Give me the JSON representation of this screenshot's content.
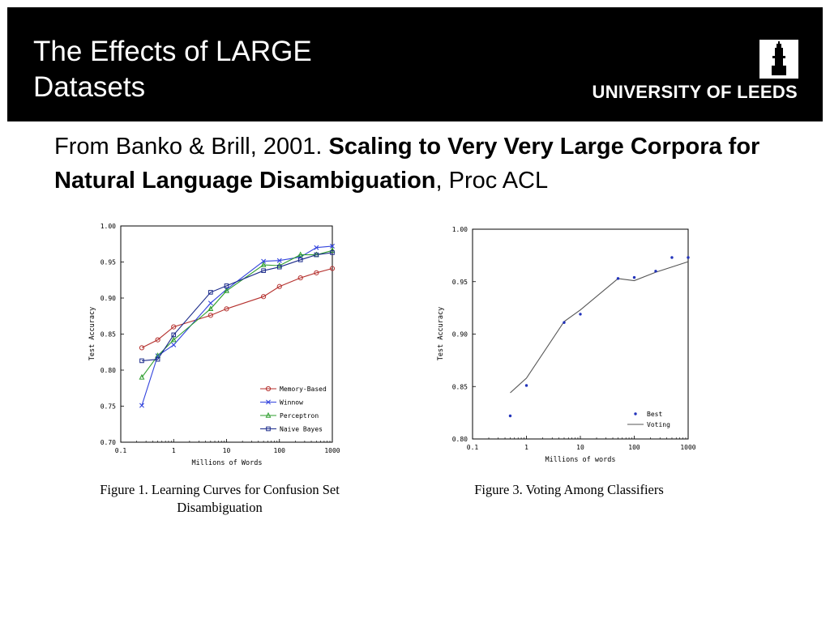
{
  "header": {
    "title": "The Effects of LARGE Datasets",
    "university": "UNIVERSITY OF LEEDS",
    "accent_bg": "#000000",
    "logo_icon": "leeds-tower-icon"
  },
  "citation": {
    "prefix": "From Banko &  Brill, 2001. ",
    "title": "Scaling to Very Very Large Corpora for Natural Language Disambiguation",
    "suffix": ", Proc ACL"
  },
  "figures": {
    "fig1_caption_line1": "Figure 1. Learning Curves for Confusion Set",
    "fig1_caption_line2": "Disambiguation",
    "fig3_caption": "Figure 3. Voting Among Classifiers"
  },
  "chart_data": [
    {
      "type": "line",
      "xlabel": "Millions of Words",
      "ylabel": "Test Accuracy",
      "x_scale": "log",
      "xlim": [
        0.1,
        1000
      ],
      "ylim": [
        0.7,
        1.0
      ],
      "x_ticks": [
        "0.1",
        "1",
        "10",
        "100",
        "1000"
      ],
      "y_ticks": [
        "0.70",
        "0.75",
        "0.80",
        "0.85",
        "0.90",
        "0.95",
        "1.00"
      ],
      "legend": "bottom-right",
      "series": [
        {
          "name": "Memory-Based",
          "color": "#b5312e",
          "marker": "circle",
          "x": [
            0.25,
            0.5,
            1,
            5,
            10,
            50,
            100,
            250,
            500,
            1000
          ],
          "y": [
            0.831,
            0.842,
            0.86,
            0.876,
            0.885,
            0.902,
            0.916,
            0.928,
            0.935,
            0.941
          ]
        },
        {
          "name": "Winnow",
          "color": "#3344dd",
          "marker": "x",
          "x": [
            0.25,
            0.5,
            1,
            5,
            10,
            50,
            100,
            250,
            500,
            1000
          ],
          "y": [
            0.751,
            0.82,
            0.835,
            0.893,
            0.912,
            0.951,
            0.952,
            0.957,
            0.97,
            0.972
          ]
        },
        {
          "name": "Perceptron",
          "color": "#2e9e2e",
          "marker": "triangle",
          "x": [
            0.25,
            0.5,
            1,
            5,
            10,
            50,
            100,
            250,
            500,
            1000
          ],
          "y": [
            0.79,
            0.82,
            0.842,
            0.885,
            0.91,
            0.946,
            0.945,
            0.96,
            0.96,
            0.966
          ]
        },
        {
          "name": "Naive Bayes",
          "color": "#1a2a8a",
          "marker": "square",
          "x": [
            0.25,
            0.5,
            1,
            5,
            10,
            50,
            100,
            250,
            500,
            1000
          ],
          "y": [
            0.813,
            0.815,
            0.849,
            0.908,
            0.917,
            0.938,
            0.943,
            0.953,
            0.96,
            0.963
          ]
        }
      ]
    },
    {
      "type": "line",
      "xlabel": "Millions of words",
      "ylabel": "Test Accuracy",
      "x_scale": "log",
      "xlim": [
        0.1,
        1000
      ],
      "ylim": [
        0.8,
        1.0
      ],
      "x_ticks": [
        "0.1",
        "1",
        "10",
        "100",
        "1000"
      ],
      "y_ticks": [
        "0.80",
        "0.85",
        "0.90",
        "0.95",
        "1.00"
      ],
      "legend": "bottom-right",
      "series": [
        {
          "name": "Best",
          "color": "#2233bb",
          "marker": "dot",
          "x": [
            0.5,
            1,
            5,
            10,
            50,
            100,
            250,
            500,
            1000
          ],
          "y": [
            0.822,
            0.851,
            0.911,
            0.919,
            0.953,
            0.954,
            0.96,
            0.973,
            0.973
          ]
        },
        {
          "name": "Voting",
          "color": "#555555",
          "marker": "none",
          "x": [
            0.5,
            1,
            5,
            10,
            50,
            100,
            250,
            500,
            1000
          ],
          "y": [
            0.844,
            0.858,
            0.912,
            0.923,
            0.953,
            0.951,
            0.959,
            0.964,
            0.969
          ]
        }
      ]
    }
  ]
}
